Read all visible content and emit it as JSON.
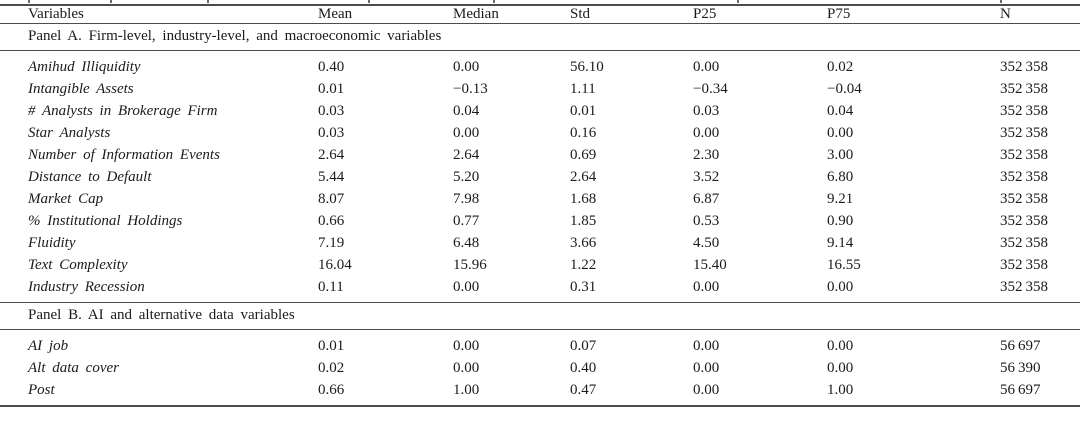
{
  "table": {
    "columns": [
      "Variables",
      "Mean",
      "Median",
      "Std",
      "P25",
      "P75",
      "N"
    ],
    "panels": [
      {
        "label": "Panel A. Firm-level, industry-level, and macroeconomic variables",
        "rows": [
          [
            "Amihud Illiquidity",
            "0.40",
            "0.00",
            "56.10",
            "0.00",
            "0.02",
            "352 358"
          ],
          [
            "Intangible Assets",
            "0.01",
            "−0.13",
            "1.11",
            "−0.34",
            "−0.04",
            "352 358"
          ],
          [
            "# Analysts in Brokerage Firm",
            "0.03",
            "0.04",
            "0.01",
            "0.03",
            "0.04",
            "352 358"
          ],
          [
            "Star Analysts",
            "0.03",
            "0.00",
            "0.16",
            "0.00",
            "0.00",
            "352 358"
          ],
          [
            "Number of Information Events",
            "2.64",
            "2.64",
            "0.69",
            "2.30",
            "3.00",
            "352 358"
          ],
          [
            "Distance to Default",
            "5.44",
            "5.20",
            "2.64",
            "3.52",
            "6.80",
            "352 358"
          ],
          [
            "Market Cap",
            "8.07",
            "7.98",
            "1.68",
            "6.87",
            "9.21",
            "352 358"
          ],
          [
            "% Institutional Holdings",
            "0.66",
            "0.77",
            "1.85",
            "0.53",
            "0.90",
            "352 358"
          ],
          [
            "Fluidity",
            "7.19",
            "6.48",
            "3.66",
            "4.50",
            "9.14",
            "352 358"
          ],
          [
            "Text Complexity",
            "16.04",
            "15.96",
            "1.22",
            "15.40",
            "16.55",
            "352 358"
          ],
          [
            "Industry Recession",
            "0.11",
            "0.00",
            "0.31",
            "0.00",
            "0.00",
            "352 358"
          ]
        ]
      },
      {
        "label": "Panel B. AI and alternative data variables",
        "rows": [
          [
            "AI job",
            "0.01",
            "0.00",
            "0.07",
            "0.00",
            "0.00",
            "56 697"
          ],
          [
            "Alt data cover",
            "0.02",
            "0.00",
            "0.40",
            "0.00",
            "0.00",
            "56 390"
          ],
          [
            "Post",
            "0.66",
            "1.00",
            "0.47",
            "0.00",
            "1.00",
            "56 697"
          ]
        ]
      }
    ]
  }
}
